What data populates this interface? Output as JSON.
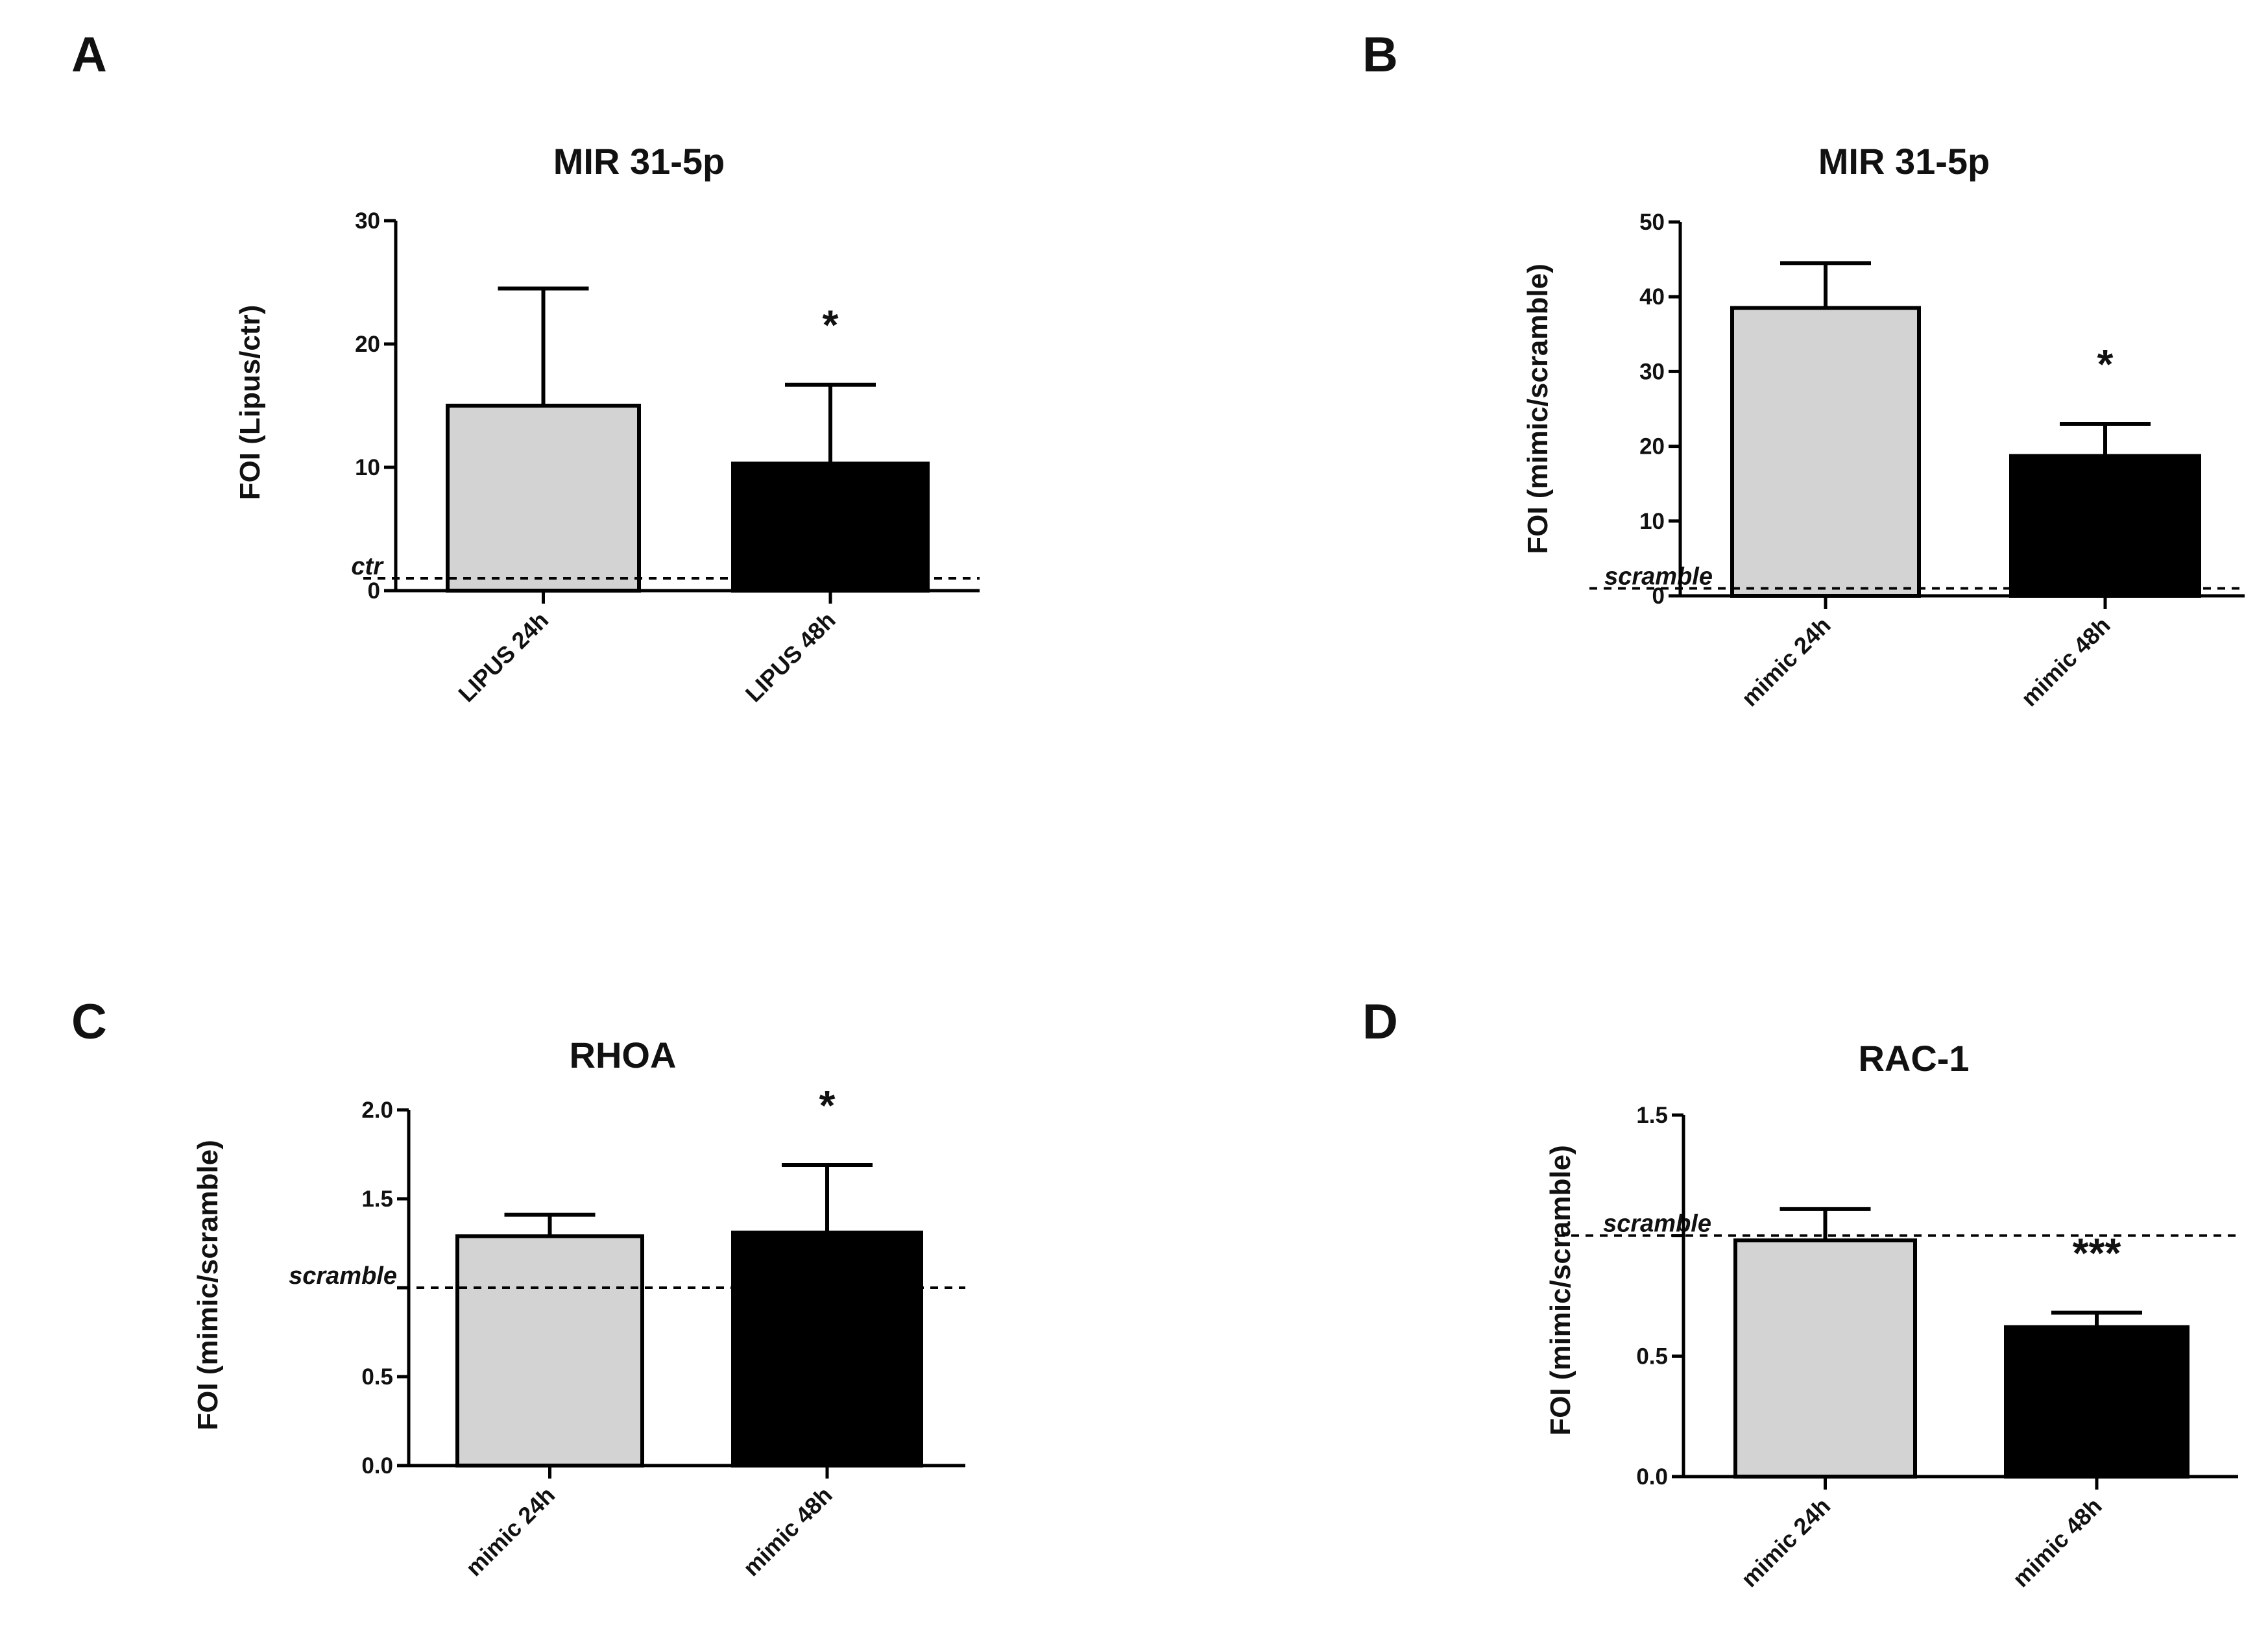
{
  "chart_data": [
    {
      "panel": "A",
      "type": "bar",
      "title": "MIR 31-5p",
      "xlabel": "",
      "ylabel": "FOI (Lipus/ctr)",
      "categories": [
        "LIPUS 24h",
        "LIPUS 48h"
      ],
      "values": [
        15,
        10.3
      ],
      "errors": [
        9.5,
        6.4
      ],
      "colors": [
        "#d3d3d3",
        "#000000"
      ],
      "significance": [
        "",
        "*"
      ],
      "ylim": [
        0,
        30
      ],
      "yticks": [
        0,
        10,
        20,
        30
      ],
      "ytick_labels": [
        "0",
        "10",
        "20",
        "30"
      ],
      "reference_line": {
        "value": 1,
        "label": "ctr"
      }
    },
    {
      "panel": "B",
      "type": "bar",
      "title": "MIR 31-5p",
      "xlabel": "",
      "ylabel": "FOI (mimic/scramble)",
      "categories": [
        "mimic 24h",
        "mimic 48h"
      ],
      "values": [
        38.5,
        18.7
      ],
      "errors": [
        6,
        4.3
      ],
      "colors": [
        "#d3d3d3",
        "#000000"
      ],
      "significance": [
        "",
        "*"
      ],
      "ylim": [
        0,
        50
      ],
      "yticks": [
        0,
        10,
        20,
        30,
        40,
        50
      ],
      "ytick_labels": [
        "0",
        "10",
        "20",
        "30",
        "40",
        "50"
      ],
      "reference_line": {
        "value": 1,
        "label": "scramble"
      }
    },
    {
      "panel": "C",
      "type": "bar",
      "title": "RHOA",
      "xlabel": "",
      "ylabel": "FOI (mimic/scramble)",
      "categories": [
        "mimic 24h",
        "mimic 48h"
      ],
      "values": [
        1.29,
        1.31
      ],
      "errors": [
        0.12,
        0.38
      ],
      "colors": [
        "#d3d3d3",
        "#000000"
      ],
      "significance": [
        "",
        "*"
      ],
      "ylim": [
        0,
        2
      ],
      "yticks": [
        0,
        0.5,
        1,
        1.5,
        2
      ],
      "ytick_labels": [
        "0.0",
        "0.5",
        "",
        "1.5",
        "2.0"
      ],
      "reference_line": {
        "value": 1,
        "label": "scramble"
      }
    },
    {
      "panel": "D",
      "type": "bar",
      "title": "RAC-1",
      "xlabel": "",
      "ylabel": "FOI (mimic/scramble)",
      "categories": [
        "mimic 24h",
        "mimic 48h"
      ],
      "values": [
        0.98,
        0.62
      ],
      "errors": [
        0.13,
        0.06
      ],
      "colors": [
        "#d3d3d3",
        "#000000"
      ],
      "significance": [
        "",
        "***"
      ],
      "ylim": [
        0,
        1.5
      ],
      "yticks": [
        0,
        0.5,
        1,
        1.5
      ],
      "ytick_labels": [
        "0.0",
        "0.5",
        "",
        "1.5"
      ],
      "reference_line": {
        "value": 1,
        "label": "scramble"
      }
    }
  ]
}
